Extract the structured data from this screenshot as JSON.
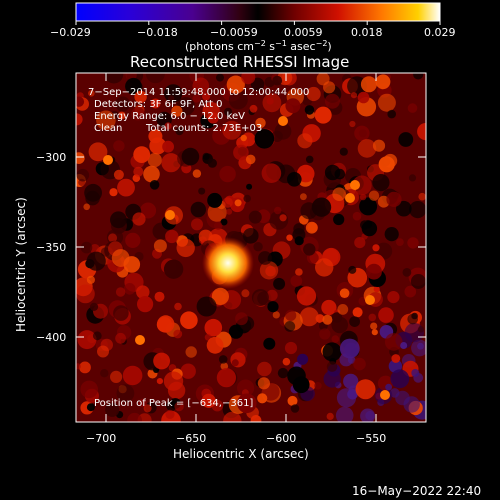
{
  "colorbar": {
    "tick_labels": [
      "−0.029",
      "−0.018",
      "−0.0059",
      "0.0059",
      "0.018",
      "0.029"
    ],
    "unit_prefix": "(photons cm",
    "unit_exp1": "−2",
    "unit_mid1": " s",
    "unit_exp2": "−1",
    "unit_mid2": " asec",
    "unit_exp3": "−2",
    "unit_suffix": ")"
  },
  "title": "Reconstructed RHESSI Image",
  "info": {
    "time_range": "7−Sep−2014 11:59:48.000 to 12:00:44.000",
    "detectors": "Detectors: 3F 6F 9F, Att 0",
    "energy": "Energy Range: 6.0 − 12.0 keV",
    "clean": "Clean",
    "total_counts": "Total counts: 2.73E+03"
  },
  "peak_label": "Position of Peak = [−634,−361]",
  "x_axis": {
    "label": "Heliocentric X (arcsec)",
    "tick_labels": [
      "−700",
      "−650",
      "−600",
      "−550"
    ]
  },
  "y_axis": {
    "label": "Heliocentric Y (arcsec)",
    "tick_labels": [
      "−300",
      "−350",
      "−400"
    ]
  },
  "footer_date": "16−May−2022 22:40",
  "colors": {
    "background": "#000000",
    "text": "#ffffff",
    "peak": "#ffff80"
  }
}
